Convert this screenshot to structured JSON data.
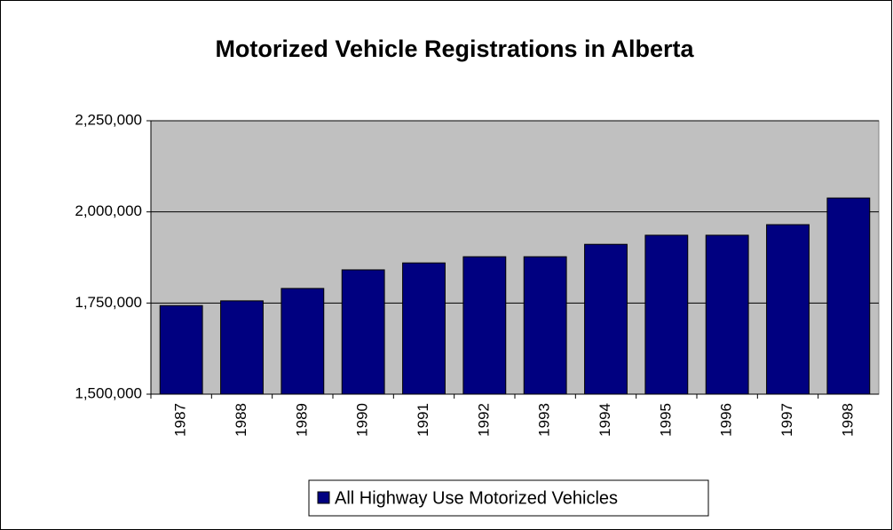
{
  "chart_data": {
    "type": "bar",
    "title": "Motorized Vehicle Registrations in Alberta",
    "categories": [
      "1987",
      "1988",
      "1989",
      "1990",
      "1991",
      "1992",
      "1993",
      "1994",
      "1995",
      "1996",
      "1997",
      "1998"
    ],
    "series": [
      {
        "name": "All Highway Use Motorized Vehicles",
        "color": "#000080",
        "values": [
          1743000,
          1756000,
          1790000,
          1841000,
          1860000,
          1877000,
          1877000,
          1911000,
          1936000,
          1936000,
          1965000,
          2038000
        ]
      }
    ],
    "ylim": [
      1500000,
      2250000
    ],
    "yticks": [
      {
        "value": 1500000,
        "label": "1,500,000"
      },
      {
        "value": 1750000,
        "label": "1,750,000"
      },
      {
        "value": 2000000,
        "label": "2,000,000"
      },
      {
        "value": 2250000,
        "label": "2,250,000"
      }
    ],
    "grid": true,
    "legend": "bottom"
  }
}
